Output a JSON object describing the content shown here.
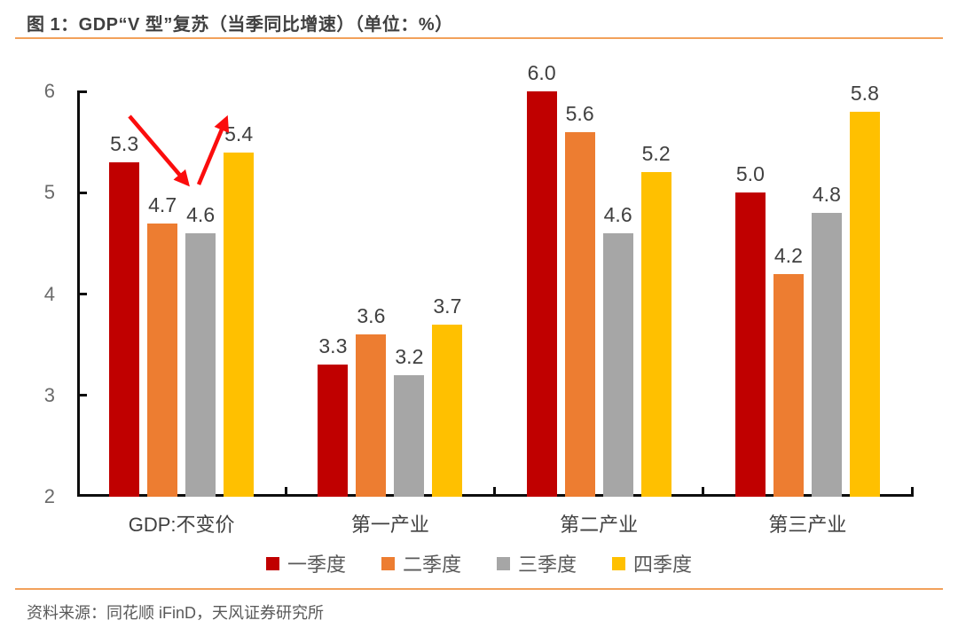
{
  "header": {
    "title": "图 1：GDP“V 型”复苏（当季同比增速）（单位：%）"
  },
  "footer": {
    "source": "资料来源：同花顺 iFinD，天风证券研究所"
  },
  "style": {
    "accent_rule_color": "#F2A15B",
    "axis_color": "#0d0d0d",
    "value_label_color": "#404040",
    "tick_label_color": "#6a6a6a",
    "arrow_color": "#FB0D0D"
  },
  "chart_data": {
    "type": "bar",
    "title": "GDP“V 型”复苏（当季同比增速）",
    "unit": "%",
    "categories": [
      "GDP:不变价",
      "第一产业",
      "第二产业",
      "第三产业"
    ],
    "series": [
      {
        "name": "一季度",
        "color": "#C00000",
        "values": [
          5.3,
          3.3,
          6.0,
          5.0
        ]
      },
      {
        "name": "二季度",
        "color": "#ED7D31",
        "values": [
          4.7,
          3.6,
          5.6,
          4.2
        ]
      },
      {
        "name": "三季度",
        "color": "#A6A6A6",
        "values": [
          4.6,
          3.2,
          4.6,
          4.8
        ]
      },
      {
        "name": "四季度",
        "color": "#FFC000",
        "values": [
          5.4,
          3.7,
          5.2,
          5.8
        ]
      }
    ],
    "ylim": [
      2,
      6
    ],
    "yticks": [
      2,
      3,
      4,
      5,
      6
    ],
    "grid": false,
    "legend_position": "bottom",
    "annotation": {
      "type": "v-shape-arrow",
      "color": "#FB0D0D"
    }
  }
}
